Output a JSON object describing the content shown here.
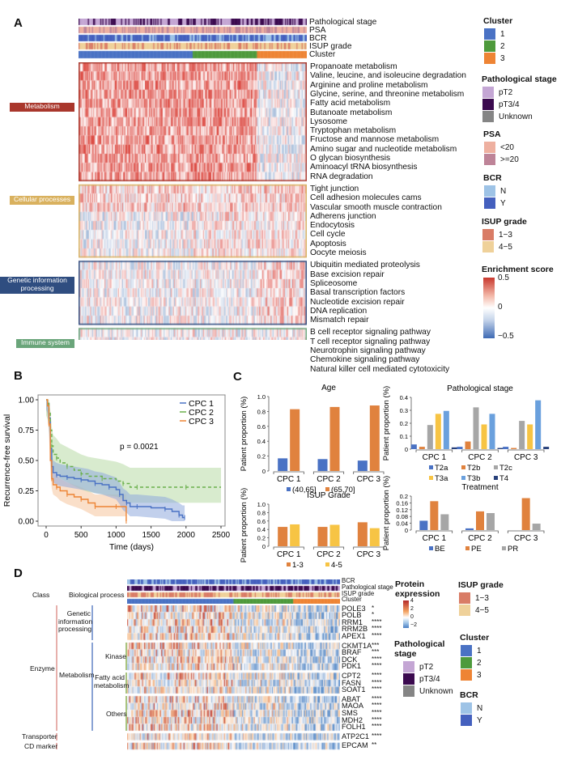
{
  "panels": {
    "A": "A",
    "B": "B",
    "C": "C",
    "D": "D"
  },
  "panel_a": {
    "annotation_tracks": [
      "Pathological stage",
      "PSA",
      "BCR",
      "ISUP grade",
      "Cluster"
    ],
    "categories": [
      {
        "name": "Metabolism",
        "color": "#a9372c",
        "pathways": [
          "Propanoate metabolism",
          "Valine, leucine, and isoleucine degradation",
          "Arginine and proline metabolism",
          "Glycine, serine, and threonine metabolism",
          "Fatty acid metabolism",
          "Butanoate metabolism",
          "Lysosome",
          "Tryptophan metabolism",
          "Fructose and mannose metabolism",
          "Amino sugar and nucleotide metabolism",
          "O glycan biosynthesis",
          "Aminoacyl tRNA biosynthesis",
          "RNA degradation"
        ]
      },
      {
        "name": "Cellular processes",
        "color": "#d9b15e",
        "pathways": [
          "Tight junction",
          "Cell adhesion molecules cams",
          "Vascular smooth muscle contraction",
          "Adherens junction",
          "Endocytosis",
          "Cell cycle",
          "Apoptosis",
          "Oocyte meiosis"
        ]
      },
      {
        "name": "Genetic information processing",
        "color": "#2f4d80",
        "pathways": [
          "Ubiquitin mediated proteolysis",
          "Base excision repair",
          "Spliceosome",
          "Basal transcription factors",
          "Nucleotide excision repair",
          "DNA replication",
          "Mismatch repair"
        ]
      },
      {
        "name": "Immune system",
        "color": "#6aa57a",
        "pathways": [
          "B cell receptor signaling pathway",
          "T cell receptor signaling pathway",
          "Neurotrophin signaling pathway",
          "Chemokine signaling pathway",
          "Natural killer cell mediated cytotoxicity"
        ]
      }
    ],
    "legends": {
      "cluster": {
        "title": "Cluster",
        "items": [
          {
            "label": "1",
            "color": "#4a72c4"
          },
          {
            "label": "2",
            "color": "#4e9a3c"
          },
          {
            "label": "3",
            "color": "#ee8434"
          }
        ]
      },
      "stage": {
        "title": "Pathological stage",
        "items": [
          {
            "label": "pT2",
            "color": "#c4a6d4"
          },
          {
            "label": "pT3/4",
            "color": "#3b0a4f"
          },
          {
            "label": "Unknown",
            "color": "#858585"
          }
        ]
      },
      "psa": {
        "title": "PSA",
        "items": [
          {
            "label": "<20",
            "color": "#eeb0a0"
          },
          {
            "label": ">=20",
            "color": "#be8498"
          }
        ]
      },
      "bcr": {
        "title": "BCR",
        "items": [
          {
            "label": "N",
            "color": "#9ec3e6"
          },
          {
            "label": "Y",
            "color": "#4460be"
          }
        ]
      },
      "isup": {
        "title": "ISUP grade",
        "items": [
          {
            "label": "1−3",
            "color": "#d97c66"
          },
          {
            "label": "4−5",
            "color": "#efd19a"
          }
        ]
      },
      "enrichment": {
        "title": "Enrichment score",
        "max": "0.5",
        "mid": "0",
        "min": "−0.5"
      }
    },
    "cluster_fractions": [
      0.5,
      0.28,
      0.22
    ]
  },
  "chart_data": [
    {
      "type": "line",
      "title": "",
      "xlabel": "Time (days)",
      "ylabel": "Recurrence-free survival",
      "xlim": [
        0,
        2500
      ],
      "ylim": [
        0,
        1
      ],
      "xticks": [
        "0",
        "500",
        "1000",
        "1500",
        "2000",
        "2500"
      ],
      "yticks": [
        "0.00",
        "0.25",
        "0.50",
        "0.75",
        "1.00"
      ],
      "annotation": "p = 0.0021",
      "legend_position": "top-right",
      "series": [
        {
          "name": "CPC 1",
          "color": "#4a72c4",
          "style": "solid",
          "x": [
            0,
            20,
            40,
            60,
            80,
            100,
            150,
            200,
            300,
            400,
            500,
            600,
            700,
            800,
            900,
            1000,
            1050,
            1100,
            1150,
            1200,
            1300,
            1500,
            1700,
            1800,
            1900,
            1950,
            1980
          ],
          "y": [
            1,
            0.97,
            0.85,
            0.6,
            0.45,
            0.4,
            0.38,
            0.37,
            0.36,
            0.35,
            0.34,
            0.33,
            0.31,
            0.3,
            0.28,
            0.26,
            0.22,
            0.17,
            0.15,
            0.12,
            0.12,
            0.11,
            0.1,
            0.08,
            0.05,
            0.03,
            0.03
          ]
        },
        {
          "name": "CPC 2",
          "color": "#6ab04c",
          "style": "dashed",
          "x": [
            0,
            20,
            40,
            60,
            80,
            100,
            150,
            200,
            300,
            400,
            500,
            600,
            800,
            1000,
            1100,
            1200,
            1300,
            1500,
            2000,
            2500
          ],
          "y": [
            1,
            0.97,
            0.9,
            0.75,
            0.62,
            0.55,
            0.52,
            0.48,
            0.45,
            0.42,
            0.39,
            0.37,
            0.35,
            0.33,
            0.31,
            0.28,
            0.28,
            0.28,
            0.28,
            0.28
          ]
        },
        {
          "name": "CPC 3",
          "color": "#ee8434",
          "style": "solid",
          "x": [
            0,
            20,
            40,
            60,
            80,
            100,
            150,
            200,
            300,
            400,
            500,
            600,
            700,
            750,
            1000,
            1140,
            1145
          ],
          "y": [
            1,
            0.95,
            0.8,
            0.5,
            0.35,
            0.3,
            0.28,
            0.25,
            0.22,
            0.2,
            0.18,
            0.15,
            0.12,
            0.12,
            0.12,
            0.12,
            0.0
          ]
        }
      ]
    },
    {
      "type": "bar",
      "title": "Age",
      "ylabel": "Patient proportion (%)",
      "ylim": [
        0,
        1.0
      ],
      "yticks": [
        "0",
        "0.2",
        "0.4",
        "0.6",
        "0.8",
        "1.0"
      ],
      "categories": [
        "CPC 1",
        "CPC 2",
        "CPC 3"
      ],
      "series": [
        {
          "name": "(40,65]",
          "color": "#4a72c4",
          "values": [
            0.17,
            0.16,
            0.14
          ]
        },
        {
          "name": "(65,70]",
          "color": "#e0823e",
          "values": [
            0.83,
            0.86,
            0.88
          ]
        }
      ],
      "legend_position": "bottom"
    },
    {
      "type": "bar",
      "title": "Pathological stage",
      "ylabel": "Patient proportion (%)",
      "ylim": [
        0,
        0.44
      ],
      "yticks": [
        "0",
        "0.1",
        "0.2",
        "0.3",
        "0.4"
      ],
      "categories": [
        "CPC 1",
        "CPC 2",
        "CPC 3"
      ],
      "series": [
        {
          "name": "T2a",
          "color": "#4a72c4",
          "values": [
            0.04,
            0.02,
            0.02
          ]
        },
        {
          "name": "T2b",
          "color": "#e0823e",
          "values": [
            0.02,
            0.065,
            0.01
          ]
        },
        {
          "name": "T2c",
          "color": "#a6a6a6",
          "values": [
            0.205,
            0.355,
            0.24
          ]
        },
        {
          "name": "T3a",
          "color": "#f7c444",
          "values": [
            0.3,
            0.21,
            0.21
          ]
        },
        {
          "name": "T3b",
          "color": "#6aa0dd",
          "values": [
            0.325,
            0.3,
            0.415
          ]
        },
        {
          "name": "T4",
          "color": "#27407a",
          "values": [
            0.015,
            0.01,
            0.02
          ]
        }
      ],
      "legend_position": "bottom"
    },
    {
      "type": "bar",
      "title": "ISUP Grade",
      "ylabel": "Patient proportion (%)",
      "ylim": [
        0,
        1.0
      ],
      "yticks": [
        "0",
        "0.2",
        "0.4",
        "0.6",
        "0.8",
        "1.0"
      ],
      "categories": [
        "CPC 1",
        "CPC 2",
        "CPC 3"
      ],
      "series": [
        {
          "name": "1-3",
          "color": "#e0823e",
          "values": [
            0.46,
            0.46,
            0.57
          ]
        },
        {
          "name": "4-5",
          "color": "#f7c444",
          "values": [
            0.52,
            0.51,
            0.43
          ]
        }
      ],
      "legend_position": "bottom"
    },
    {
      "type": "bar",
      "title": "Treatment",
      "ylabel": "Patient proportion (%)",
      "ylim": [
        0,
        0.2
      ],
      "yticks": [
        "0",
        "0.04",
        "0.08",
        "0.12",
        "0.16",
        "0.2"
      ],
      "categories": [
        "CPC 1",
        "CPC 2",
        "CPC 3"
      ],
      "series": [
        {
          "name": "BE",
          "color": "#4a72c4",
          "values": [
            0.055,
            0.01,
            0
          ]
        },
        {
          "name": "PE",
          "color": "#e0823e",
          "values": [
            0.17,
            0.11,
            0.188
          ]
        },
        {
          "name": "PR",
          "color": "#a6a6a6",
          "values": [
            0.093,
            0.1,
            0.038
          ]
        }
      ],
      "legend_position": "bottom"
    }
  ],
  "panel_d": {
    "headers": {
      "class": "Class",
      "process": "Biological process"
    },
    "annotation_tracks": [
      "BCR",
      "Pathological stage",
      "ISUP grade",
      "Cluster"
    ],
    "classes": [
      "Enzyme",
      "Transporter",
      "CD marker"
    ],
    "processes": [
      "Genetic information processing",
      "Metabolism"
    ],
    "subprocesses": [
      "Kinase",
      "Fatty acid metabolism",
      "Others"
    ],
    "groups": [
      {
        "genes": [
          {
            "name": "POLE3",
            "sig": "*"
          },
          {
            "name": "POLB",
            "sig": "*"
          },
          {
            "name": "RRM1",
            "sig": "****"
          },
          {
            "name": "RRM2B",
            "sig": "****"
          },
          {
            "name": "APEX1",
            "sig": "****"
          }
        ]
      },
      {
        "genes": [
          {
            "name": "CKMT1A",
            "sig": "***"
          },
          {
            "name": "BRAF",
            "sig": "***"
          },
          {
            "name": "DCK",
            "sig": "****"
          },
          {
            "name": "PDK1",
            "sig": "****"
          }
        ]
      },
      {
        "genes": [
          {
            "name": "CPT2",
            "sig": "****"
          },
          {
            "name": "FASN",
            "sig": "****"
          },
          {
            "name": "SOAT1",
            "sig": "****"
          }
        ]
      },
      {
        "genes": [
          {
            "name": "ABAT",
            "sig": "****"
          },
          {
            "name": "MAOA",
            "sig": "****"
          },
          {
            "name": "SMS",
            "sig": "****"
          },
          {
            "name": "MDH2",
            "sig": "****"
          },
          {
            "name": "FOLH1",
            "sig": "****"
          }
        ]
      },
      {
        "genes": [
          {
            "name": "ATP2C1",
            "sig": "****"
          }
        ]
      },
      {
        "genes": [
          {
            "name": "EPCAM",
            "sig": "**"
          }
        ]
      }
    ],
    "legends": {
      "protein": {
        "title1": "Protein",
        "title2": "expression",
        "max": "4",
        "t2": "2",
        "mid": "0",
        "min": "−2"
      },
      "stage": {
        "title1": "Pathological",
        "title2": "stage",
        "items": [
          {
            "label": "pT2",
            "color": "#c4a6d4"
          },
          {
            "label": "pT3/4",
            "color": "#3b0a4f"
          },
          {
            "label": "Unknown",
            "color": "#858585"
          }
        ]
      },
      "isup": {
        "title": "ISUP grade",
        "items": [
          {
            "label": "1−3",
            "color": "#d97c66"
          },
          {
            "label": "4−5",
            "color": "#efd19a"
          }
        ]
      },
      "cluster": {
        "title": "Cluster",
        "items": [
          {
            "label": "1",
            "color": "#4a72c4"
          },
          {
            "label": "2",
            "color": "#4e9a3c"
          },
          {
            "label": "3",
            "color": "#ee8434"
          }
        ]
      },
      "bcr": {
        "title": "BCR",
        "items": [
          {
            "label": "N",
            "color": "#9ec3e6"
          },
          {
            "label": "Y",
            "color": "#4460be"
          }
        ]
      }
    },
    "cluster_fractions": [
      0.5,
      0.28,
      0.22
    ]
  }
}
